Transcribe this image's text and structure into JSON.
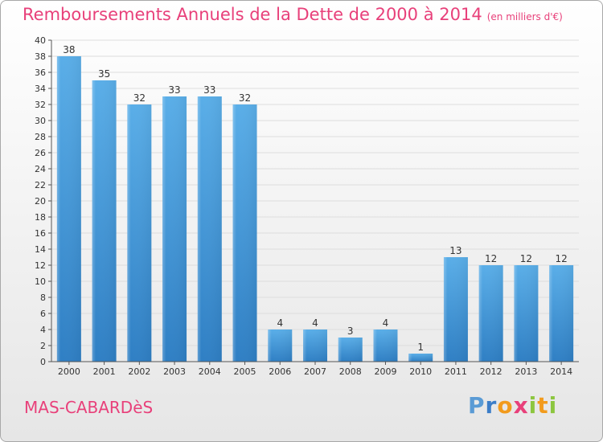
{
  "header": {
    "title": "Remboursements Annuels de la Dette de 2000 à 2014",
    "unit": "(en milliers d'€)"
  },
  "footer": {
    "commune": "MAS-CABARDèS",
    "logo": {
      "p": "P",
      "r": "r",
      "o": "o",
      "x": "x",
      "i": "i",
      "t": "t",
      "i2": "i"
    }
  },
  "colors": {
    "bar_top": "#5aaee8",
    "bar_bottom": "#2f7fc4",
    "title": "#e8407a",
    "grid": "#dddddd"
  },
  "chart_data": {
    "type": "bar",
    "title": "Remboursements Annuels de la Dette de 2000 à 2014",
    "subtitle": "(en milliers d'€)",
    "categories": [
      "2000",
      "2001",
      "2002",
      "2003",
      "2004",
      "2005",
      "2006",
      "2007",
      "2008",
      "2009",
      "2010",
      "2011",
      "2012",
      "2013",
      "2014"
    ],
    "values": [
      38,
      35,
      32,
      33,
      33,
      32,
      4,
      4,
      3,
      4,
      1,
      13,
      12,
      12,
      12
    ],
    "ylim": [
      0,
      40
    ],
    "yticks": [
      0,
      2,
      4,
      6,
      8,
      10,
      12,
      14,
      16,
      18,
      20,
      22,
      24,
      26,
      28,
      30,
      32,
      34,
      36,
      38,
      40
    ],
    "grid": true,
    "data_labels": true
  }
}
